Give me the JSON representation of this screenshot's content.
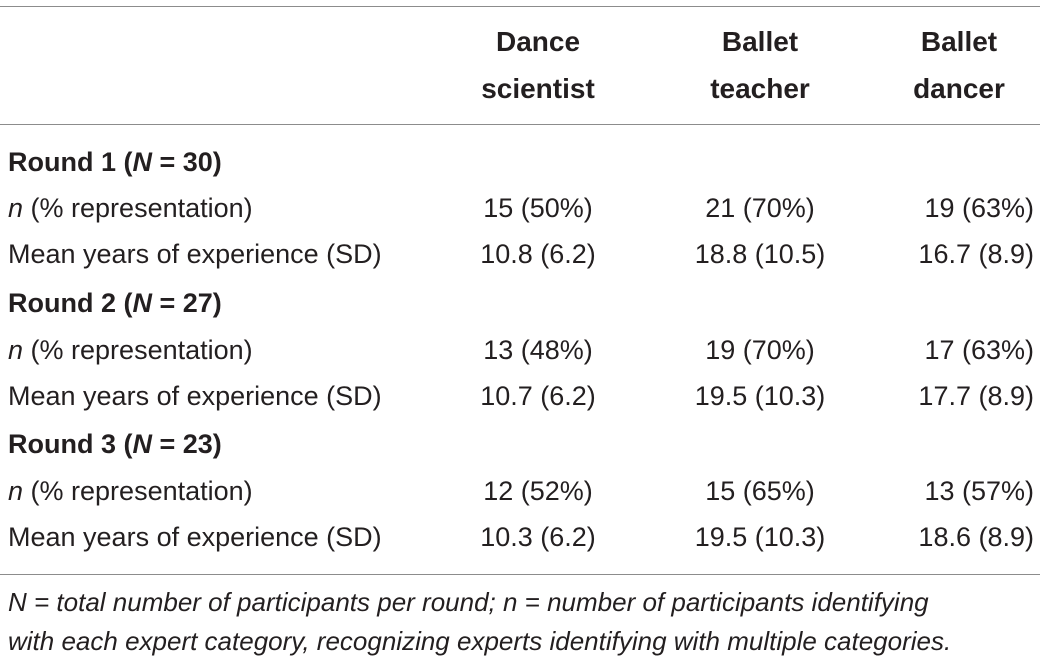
{
  "table": {
    "columns": [
      {
        "line1": "Dance",
        "line2": "scientist"
      },
      {
        "line1": "Ballet",
        "line2": "teacher"
      },
      {
        "line1": "Ballet",
        "line2": "dancer"
      }
    ],
    "rounds": [
      {
        "title_prefix": "Round 1 (",
        "title_var": "N",
        "title_suffix": " = 30)",
        "n_label_var": "n",
        "n_label_rest": " (% representation)",
        "n_values": [
          "15 (50%)",
          "21 (70%)",
          "19 (63%)"
        ],
        "exp_label": "Mean years of experience (SD)",
        "exp_values": [
          "10.8 (6.2)",
          "18.8 (10.5)",
          "16.7 (8.9)"
        ]
      },
      {
        "title_prefix": "Round 2 (",
        "title_var": "N",
        "title_suffix": " = 27)",
        "n_label_var": "n",
        "n_label_rest": " (% representation)",
        "n_values": [
          "13 (48%)",
          "19 (70%)",
          "17 (63%)"
        ],
        "exp_label": "Mean years of experience (SD)",
        "exp_values": [
          "10.7 (6.2)",
          "19.5 (10.3)",
          "17.7 (8.9)"
        ]
      },
      {
        "title_prefix": "Round 3 (",
        "title_var": "N",
        "title_suffix": " = 23)",
        "n_label_var": "n",
        "n_label_rest": " (% representation)",
        "n_values": [
          "12 (52%)",
          "15 (65%)",
          "13 (57%)"
        ],
        "exp_label": "Mean years of experience (SD)",
        "exp_values": [
          "10.3 (6.2)",
          "19.5 (10.3)",
          "18.6 (8.9)"
        ]
      }
    ],
    "footnote": {
      "line1": "N = total number of participants per round; n = number of participants identifying",
      "line2": "with each expert category, recognizing experts identifying with multiple categories."
    }
  }
}
